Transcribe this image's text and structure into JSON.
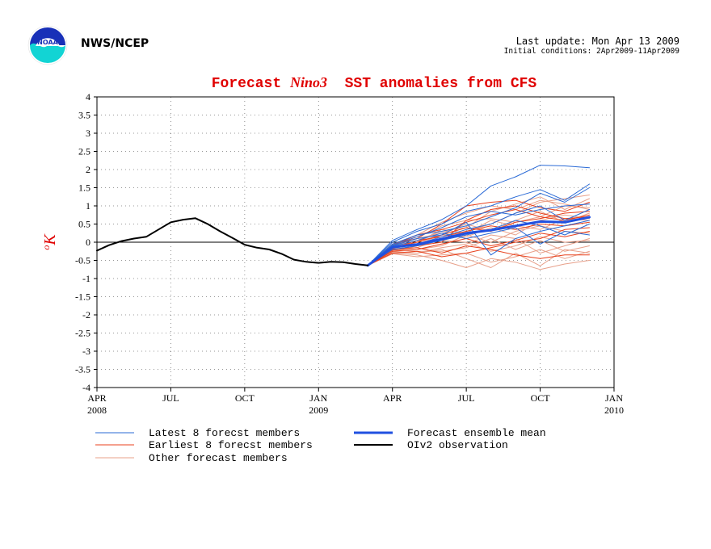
{
  "header": {
    "org": "NWS/NCEP",
    "last_update": "Last update: Mon Apr 13 2009",
    "initial_conditions": "Initial conditions: 2Apr2009-11Apr2009",
    "logo_text": "NOAA"
  },
  "chart_data": {
    "type": "line",
    "title_prefix": "Forecast ",
    "title_italic": "Nino3",
    "title_suffix": "  SST anomalies from CFS",
    "ylabel_sup": "o",
    "ylabel": "K",
    "ylim": [
      -4,
      4
    ],
    "yticks": [
      -4,
      -3.5,
      -3,
      -2.5,
      -2,
      -1.5,
      -1,
      -0.5,
      0,
      0.5,
      1,
      1.5,
      2,
      2.5,
      3,
      3.5,
      4
    ],
    "xlim": [
      0,
      21
    ],
    "xticks": [
      {
        "x": 0,
        "label": "APR",
        "year": "2008"
      },
      {
        "x": 3,
        "label": "JUL",
        "year": ""
      },
      {
        "x": 6,
        "label": "OCT",
        "year": ""
      },
      {
        "x": 9,
        "label": "JAN",
        "year": "2009"
      },
      {
        "x": 12,
        "label": "APR",
        "year": ""
      },
      {
        "x": 15,
        "label": "JUL",
        "year": ""
      },
      {
        "x": 18,
        "label": "OCT",
        "year": ""
      },
      {
        "x": 21,
        "label": "JAN",
        "year": "2010"
      }
    ],
    "grid": true,
    "legend_position": "bottom",
    "colors": {
      "latest": "#2a6ad6",
      "earliest": "#e8401c",
      "other": "#e8a08a",
      "mean": "#2050e0",
      "obs": "#000000",
      "title": "#e00000"
    },
    "legend": [
      {
        "key": "latest",
        "label": "Latest 8 forecst members"
      },
      {
        "key": "earliest",
        "label": "Earliest 8 forecst members"
      },
      {
        "key": "other",
        "label": "Other forecast members"
      },
      {
        "key": "mean",
        "label": "Forecast ensemble mean"
      },
      {
        "key": "obs",
        "label": "OIv2 observation"
      }
    ],
    "series": [
      {
        "name": "OIv2 observation",
        "group": "obs",
        "x": [
          0,
          0.5,
          1,
          1.5,
          2,
          2.5,
          3,
          3.5,
          4,
          4.5,
          5,
          5.5,
          6,
          6.5,
          7,
          7.5,
          8,
          8.5,
          9,
          9.5,
          10,
          10.5,
          11
        ],
        "y": [
          -0.23,
          -0.08,
          0.03,
          0.1,
          0.15,
          0.35,
          0.55,
          0.62,
          0.66,
          0.5,
          0.3,
          0.12,
          -0.07,
          -0.15,
          -0.2,
          -0.32,
          -0.48,
          -0.54,
          -0.57,
          -0.54,
          -0.55,
          -0.6,
          -0.64
        ]
      },
      {
        "name": "Forecast ensemble mean",
        "group": "mean",
        "x": [
          11,
          12,
          13,
          14,
          15,
          16,
          17,
          18,
          19,
          20
        ],
        "y": [
          -0.64,
          -0.14,
          -0.06,
          0.09,
          0.25,
          0.33,
          0.45,
          0.57,
          0.55,
          0.69
        ]
      },
      {
        "group": "latest",
        "x": [
          11,
          12,
          13,
          14,
          15,
          16,
          17,
          18,
          19,
          20
        ],
        "y": [
          -0.64,
          0.05,
          0.35,
          0.62,
          1.0,
          1.55,
          1.8,
          2.12,
          2.1,
          2.05
        ]
      },
      {
        "group": "latest",
        "x": [
          11,
          12,
          13,
          14,
          15,
          16,
          17,
          18,
          19,
          20
        ],
        "y": [
          -0.64,
          0.0,
          0.3,
          0.5,
          0.85,
          1.0,
          1.25,
          1.45,
          1.15,
          1.6
        ]
      },
      {
        "group": "latest",
        "x": [
          11,
          12,
          13,
          14,
          15,
          16,
          17,
          18,
          19,
          20
        ],
        "y": [
          -0.64,
          -0.05,
          0.2,
          0.3,
          0.45,
          0.7,
          0.95,
          1.35,
          1.1,
          1.5
        ]
      },
      {
        "group": "latest",
        "x": [
          11,
          12,
          13,
          14,
          15,
          16,
          17,
          18,
          19,
          20
        ],
        "y": [
          -0.64,
          -0.1,
          0.1,
          0.2,
          0.55,
          -0.35,
          0.1,
          0.3,
          0.45,
          0.6
        ]
      },
      {
        "group": "latest",
        "x": [
          11,
          12,
          13,
          14,
          15,
          16,
          17,
          18,
          19,
          20
        ],
        "y": [
          -0.64,
          -0.15,
          -0.05,
          0.15,
          0.35,
          0.5,
          0.8,
          1.0,
          0.6,
          0.9
        ]
      },
      {
        "group": "latest",
        "x": [
          11,
          12,
          13,
          14,
          15,
          16,
          17,
          18,
          19,
          20
        ],
        "y": [
          -0.64,
          -0.2,
          -0.1,
          0.05,
          0.2,
          0.35,
          0.6,
          0.45,
          0.2,
          0.5
        ]
      },
      {
        "group": "latest",
        "x": [
          11,
          12,
          13,
          14,
          15,
          16,
          17,
          18,
          19,
          20
        ],
        "y": [
          -0.64,
          -0.08,
          0.15,
          0.4,
          0.7,
          0.85,
          0.75,
          0.9,
          1.0,
          1.05
        ]
      },
      {
        "group": "latest",
        "x": [
          11,
          12,
          13,
          14,
          15,
          16,
          17,
          18,
          19,
          20
        ],
        "y": [
          -0.64,
          -0.12,
          0.05,
          0.25,
          0.1,
          0.25,
          0.4,
          -0.05,
          0.3,
          0.2
        ]
      },
      {
        "group": "earliest",
        "x": [
          11,
          12,
          13,
          14,
          15,
          16,
          17,
          18,
          19,
          20
        ],
        "y": [
          -0.64,
          -0.05,
          0.1,
          0.5,
          1.0,
          1.1,
          1.15,
          0.95,
          0.85,
          1.1
        ]
      },
      {
        "group": "earliest",
        "x": [
          11,
          12,
          13,
          14,
          15,
          16,
          17,
          18,
          19,
          20
        ],
        "y": [
          -0.64,
          -0.2,
          -0.15,
          -0.3,
          -0.1,
          -0.2,
          -0.35,
          -0.45,
          -0.35,
          -0.35
        ]
      },
      {
        "group": "earliest",
        "x": [
          11,
          12,
          13,
          14,
          15,
          16,
          17,
          18,
          19,
          20
        ],
        "y": [
          -0.64,
          -0.15,
          0.0,
          0.2,
          0.4,
          0.3,
          0.55,
          0.65,
          0.8,
          0.85
        ]
      },
      {
        "group": "earliest",
        "x": [
          11,
          12,
          13,
          14,
          15,
          16,
          17,
          18,
          19,
          20
        ],
        "y": [
          -0.64,
          -0.25,
          -0.2,
          -0.05,
          0.1,
          -0.1,
          0.05,
          0.25,
          0.15,
          0.3
        ]
      },
      {
        "group": "earliest",
        "x": [
          11,
          12,
          13,
          14,
          15,
          16,
          17,
          18,
          19,
          20
        ],
        "y": [
          -0.64,
          -0.1,
          0.2,
          0.35,
          0.55,
          0.75,
          0.9,
          0.7,
          0.6,
          0.75
        ]
      },
      {
        "group": "earliest",
        "x": [
          11,
          12,
          13,
          14,
          15,
          16,
          17,
          18,
          19,
          20
        ],
        "y": [
          -0.64,
          -0.3,
          -0.25,
          -0.4,
          -0.3,
          -0.15,
          0.0,
          0.1,
          0.35,
          0.4
        ]
      },
      {
        "group": "earliest",
        "x": [
          11,
          12,
          13,
          14,
          15,
          16,
          17,
          18,
          19,
          20
        ],
        "y": [
          -0.64,
          -0.18,
          0.05,
          0.15,
          0.3,
          0.45,
          0.35,
          0.5,
          0.45,
          0.55
        ]
      },
      {
        "group": "earliest",
        "x": [
          11,
          12,
          13,
          14,
          15,
          16,
          17,
          18,
          19,
          20
        ],
        "y": [
          -0.64,
          -0.22,
          -0.1,
          0.0,
          0.6,
          0.9,
          1.0,
          0.8,
          0.65,
          0.7
        ]
      },
      {
        "group": "other",
        "x": [
          11,
          12,
          13,
          14,
          15,
          16,
          17,
          18,
          19,
          20
        ],
        "y": [
          -0.64,
          -0.3,
          -0.35,
          -0.5,
          -0.7,
          -0.45,
          -0.55,
          -0.75,
          -0.6,
          -0.5
        ]
      },
      {
        "group": "other",
        "x": [
          11,
          12,
          13,
          14,
          15,
          16,
          17,
          18,
          19,
          20
        ],
        "y": [
          -0.64,
          -0.25,
          -0.3,
          -0.2,
          -0.45,
          -0.7,
          -0.3,
          -0.65,
          -0.2,
          -0.3
        ]
      },
      {
        "group": "other",
        "x": [
          11,
          12,
          13,
          14,
          15,
          16,
          17,
          18,
          19,
          20
        ],
        "y": [
          -0.64,
          -0.2,
          -0.15,
          0.1,
          0.3,
          0.5,
          0.8,
          1.1,
          1.2,
          1.3
        ]
      },
      {
        "group": "other",
        "x": [
          11,
          12,
          13,
          14,
          15,
          16,
          17,
          18,
          19,
          20
        ],
        "y": [
          -0.64,
          -0.15,
          0.05,
          0.3,
          0.4,
          0.85,
          1.05,
          1.25,
          0.9,
          1.2
        ]
      },
      {
        "group": "other",
        "x": [
          11,
          12,
          13,
          14,
          15,
          16,
          17,
          18,
          19,
          20
        ],
        "y": [
          -0.64,
          -0.28,
          -0.3,
          -0.15,
          -0.05,
          0.2,
          0.1,
          -0.3,
          -0.1,
          0.1
        ]
      },
      {
        "group": "other",
        "x": [
          11,
          12,
          13,
          14,
          15,
          16,
          17,
          18,
          19,
          20
        ],
        "y": [
          -0.64,
          -0.1,
          0.15,
          0.45,
          0.6,
          0.65,
          0.55,
          0.7,
          1.0,
          0.95
        ]
      },
      {
        "group": "other",
        "x": [
          11,
          12,
          13,
          14,
          15,
          16,
          17,
          18,
          19,
          20
        ],
        "y": [
          -0.64,
          -0.22,
          -0.2,
          -0.1,
          0.2,
          0.0,
          0.3,
          0.45,
          0.3,
          0.25
        ]
      },
      {
        "group": "other",
        "x": [
          11,
          12,
          13,
          14,
          15,
          16,
          17,
          18,
          19,
          20
        ],
        "y": [
          -0.64,
          -0.18,
          -0.05,
          0.2,
          0.15,
          0.4,
          0.2,
          0.6,
          0.75,
          0.65
        ]
      },
      {
        "group": "other",
        "x": [
          11,
          12,
          13,
          14,
          15,
          16,
          17,
          18,
          19,
          20
        ],
        "y": [
          -0.64,
          -0.32,
          -0.4,
          -0.35,
          -0.3,
          -0.55,
          -0.4,
          -0.2,
          -0.45,
          -0.25
        ]
      },
      {
        "group": "other",
        "x": [
          11,
          12,
          13,
          14,
          15,
          16,
          17,
          18,
          19,
          20
        ],
        "y": [
          -0.64,
          -0.12,
          0.1,
          0.25,
          0.5,
          0.3,
          0.6,
          0.85,
          0.55,
          0.8
        ]
      },
      {
        "group": "other",
        "x": [
          11,
          12,
          13,
          14,
          15,
          16,
          17,
          18,
          19,
          20
        ],
        "y": [
          -0.64,
          -0.26,
          -0.1,
          0.05,
          0.0,
          -0.25,
          -0.1,
          0.15,
          0.0,
          0.05
        ]
      },
      {
        "group": "other",
        "x": [
          11,
          12,
          13,
          14,
          15,
          16,
          17,
          18,
          19,
          20
        ],
        "y": [
          -0.64,
          -0.16,
          0.0,
          0.35,
          0.25,
          0.6,
          0.45,
          0.35,
          0.65,
          0.6
        ]
      },
      {
        "group": "other",
        "x": [
          11,
          12,
          13,
          14,
          15,
          16,
          17,
          18,
          19,
          20
        ],
        "y": [
          -0.64,
          -0.2,
          -0.25,
          -0.25,
          -0.15,
          0.1,
          -0.2,
          0.05,
          -0.25,
          -0.1
        ]
      },
      {
        "group": "other",
        "x": [
          11,
          12,
          13,
          14,
          15,
          16,
          17,
          18,
          19,
          20
        ],
        "y": [
          -0.64,
          -0.08,
          0.2,
          0.55,
          0.8,
          1.0,
          0.9,
          1.15,
          1.05,
          0.9
        ]
      }
    ]
  }
}
